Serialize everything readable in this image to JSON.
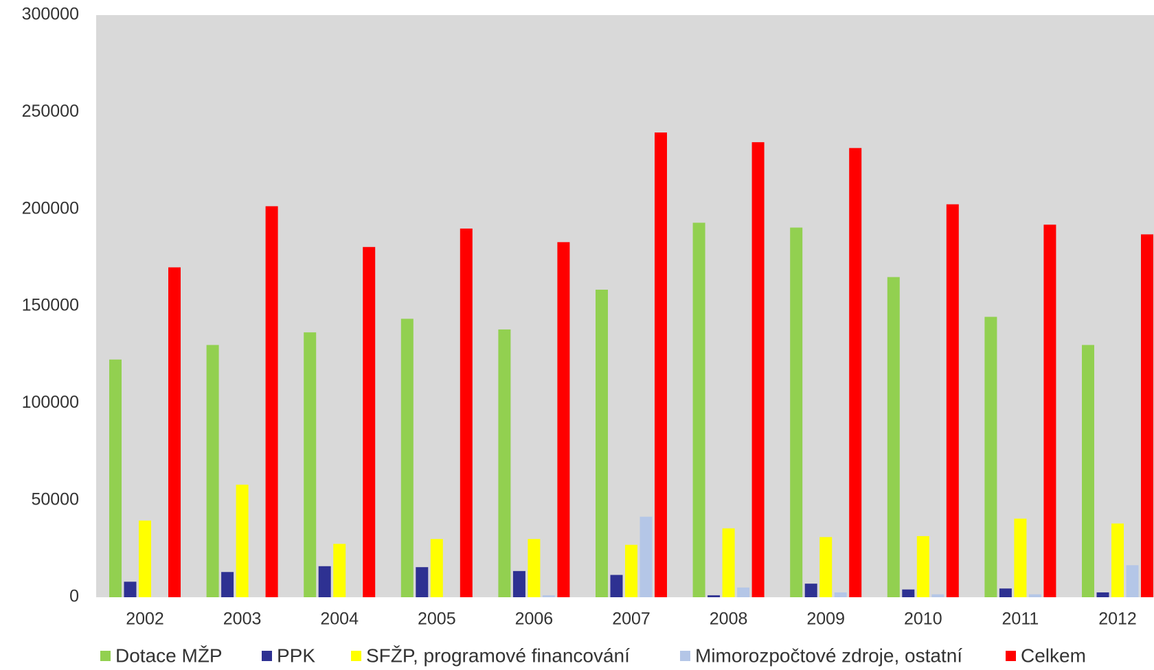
{
  "chart_data": {
    "type": "bar",
    "title": "",
    "xlabel": "",
    "ylabel": "",
    "ylim": [
      0,
      300000
    ],
    "yticks": [
      "0",
      "50000",
      "100000",
      "150000",
      "200000",
      "250000",
      "300000"
    ],
    "categories": [
      "2002",
      "2003",
      "2004",
      "2005",
      "2006",
      "2007",
      "2008",
      "2009",
      "2010",
      "2011",
      "2012"
    ],
    "grid": false,
    "plot_background": "#d9d9d9",
    "legend_position": "bottom",
    "series": [
      {
        "name": "Dotace MŽP",
        "color": "#92d050",
        "values": [
          122500,
          130000,
          136500,
          143500,
          138000,
          158500,
          193000,
          190500,
          165000,
          144500,
          130000
        ]
      },
      {
        "name": "PPK",
        "color": "#2e3192",
        "values": [
          8000,
          13000,
          16000,
          15500,
          13500,
          11500,
          1000,
          7000,
          4000,
          4500,
          2500
        ]
      },
      {
        "name": "SFŽP, programové financování",
        "color": "#ffff00",
        "values": [
          39500,
          58000,
          27500,
          30000,
          30000,
          27000,
          35500,
          31000,
          31500,
          40500,
          38000
        ]
      },
      {
        "name": "Mimorozpočtové zdroje, ostatní",
        "color": "#b4c6e7",
        "values": [
          0,
          0,
          0,
          0,
          1000,
          41500,
          5000,
          2500,
          1500,
          1500,
          16500
        ]
      },
      {
        "name": "Celkem",
        "color": "#ff0000",
        "values": [
          170000,
          201500,
          180500,
          190000,
          183000,
          239500,
          234500,
          231500,
          202500,
          192000,
          187000
        ]
      }
    ]
  }
}
